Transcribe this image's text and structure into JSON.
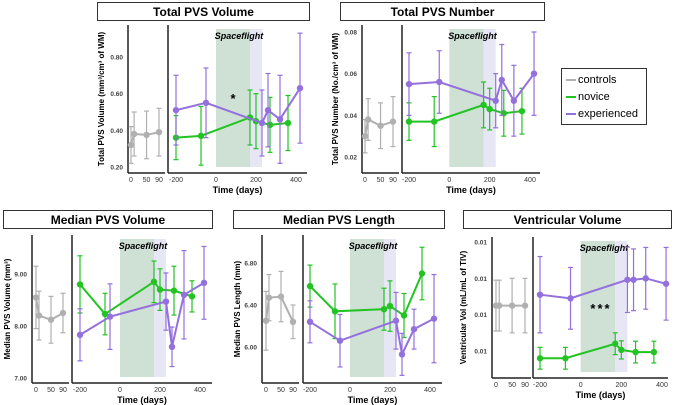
{
  "colors": {
    "controls": "#b0b0b0",
    "novice": "#22c322",
    "experienced": "#9370db",
    "spaceflight_band": "#cfe0d5",
    "post_band": "#e6e6f5"
  },
  "legend": [
    {
      "key": "controls",
      "label": "controls"
    },
    {
      "key": "novice",
      "label": "novice"
    },
    {
      "key": "experienced",
      "label": "experienced"
    }
  ],
  "chart_data": [
    {
      "type": "line",
      "title": "Total PVS Volume",
      "ylabel": "Total PVS Volume (mm³/cm³ of WM)",
      "xlabel": "Time (days)",
      "band_label": "Spaceflight",
      "bands": [
        [
          0,
          170
        ],
        [
          170,
          230
        ]
      ],
      "yticks": [
        0.2,
        0.4,
        0.6,
        0.8
      ],
      "ytick_labels": [
        "0.20",
        "0.40",
        "0.60",
        "0.80"
      ],
      "ctrl_xticks": [
        0,
        50,
        90
      ],
      "xticks": [
        -200,
        0,
        200,
        400
      ],
      "annotation": {
        "text": "*",
        "x": 90,
        "y": 0.57
      },
      "series": [
        {
          "name": "controls",
          "x": [
            0,
            10,
            50,
            90
          ],
          "y": [
            0.32,
            0.38,
            0.375,
            0.39
          ],
          "err": [
            0.1,
            0.12,
            0.13,
            0.13
          ]
        },
        {
          "name": "novice",
          "x": [
            -200,
            -75,
            170,
            200,
            270,
            360
          ],
          "y": [
            0.36,
            0.37,
            0.47,
            0.45,
            0.43,
            0.44
          ],
          "err": [
            0.12,
            0.16,
            0.15,
            0.15,
            0.15,
            0.15
          ]
        },
        {
          "name": "experienced",
          "x": [
            -200,
            -50,
            230,
            260,
            320,
            420
          ],
          "y": [
            0.51,
            0.55,
            0.44,
            0.51,
            0.46,
            0.63
          ],
          "err": [
            0.19,
            0.19,
            0.18,
            0.2,
            0.24,
            0.3
          ]
        }
      ]
    },
    {
      "type": "line",
      "title": "Total PVS Number",
      "ylabel": "Total PVS Number (No./cm³ of WM)",
      "xlabel": "Time (days)",
      "band_label": "Spaceflight",
      "bands": [
        [
          0,
          170
        ],
        [
          170,
          230
        ]
      ],
      "yticks": [
        0.02,
        0.04,
        0.06,
        0.08
      ],
      "ytick_labels": [
        "0.02",
        "0.04",
        "0.06",
        "0.08"
      ],
      "ctrl_xticks": [
        0,
        50,
        90
      ],
      "xticks": [
        -200,
        0,
        200,
        400
      ],
      "series": [
        {
          "name": "controls",
          "x": [
            0,
            10,
            50,
            90
          ],
          "y": [
            0.03,
            0.038,
            0.035,
            0.037
          ],
          "err": [
            0.008,
            0.01,
            0.011,
            0.012
          ]
        },
        {
          "name": "novice",
          "x": [
            -200,
            -75,
            170,
            200,
            270,
            360
          ],
          "y": [
            0.037,
            0.037,
            0.045,
            0.043,
            0.041,
            0.042
          ],
          "err": [
            0.009,
            0.012,
            0.011,
            0.01,
            0.011,
            0.011
          ]
        },
        {
          "name": "experienced",
          "x": [
            -200,
            -50,
            230,
            260,
            320,
            420
          ],
          "y": [
            0.055,
            0.056,
            0.047,
            0.057,
            0.047,
            0.06
          ],
          "err": [
            0.015,
            0.015,
            0.013,
            0.017,
            0.017,
            0.02
          ]
        }
      ]
    },
    {
      "type": "line",
      "title": "Median PVS Volume",
      "ylabel": "Median PVS Volume (mm³)",
      "xlabel": "Time (days)",
      "band_label": "Spaceflight",
      "bands": [
        [
          0,
          170
        ],
        [
          170,
          230
        ]
      ],
      "yticks": [
        7,
        8,
        9
      ],
      "ytick_labels": [
        "7.00",
        "8.00",
        "9.00"
      ],
      "ctrl_xticks": [
        0,
        50,
        90
      ],
      "xticks": [
        -200,
        0,
        200,
        400
      ],
      "series": [
        {
          "name": "controls",
          "x": [
            0,
            10,
            50,
            90
          ],
          "y": [
            8.55,
            8.2,
            8.12,
            8.25
          ],
          "err": [
            0.6,
            0.47,
            0.45,
            0.38
          ]
        },
        {
          "name": "novice",
          "x": [
            -200,
            -75,
            170,
            200,
            270,
            360
          ],
          "y": [
            8.8,
            8.23,
            8.85,
            8.7,
            8.68,
            8.57
          ],
          "err": [
            0.55,
            0.4,
            0.4,
            0.4,
            0.47,
            0.3
          ]
        },
        {
          "name": "experienced",
          "x": [
            -200,
            -50,
            230,
            260,
            320,
            420
          ],
          "y": [
            7.83,
            8.18,
            8.47,
            7.6,
            8.6,
            8.83
          ],
          "err": [
            0.5,
            0.63,
            0.55,
            0.38,
            0.85,
            0.7
          ]
        }
      ]
    },
    {
      "type": "line",
      "title": "Median PVS Length",
      "ylabel": "Median PVS Length (mm)",
      "xlabel": "Time (days)",
      "band_label": "Spaceflight",
      "bands": [
        [
          0,
          170
        ],
        [
          170,
          230
        ]
      ],
      "yticks": [
        6.0,
        6.4,
        6.8
      ],
      "ytick_labels": [
        "6.00",
        "6.40",
        "6.80"
      ],
      "ctrl_xticks": [
        0,
        50,
        90
      ],
      "xticks": [
        -200,
        0,
        200,
        400
      ],
      "series": [
        {
          "name": "controls",
          "x": [
            0,
            10,
            50,
            90
          ],
          "y": [
            6.25,
            6.47,
            6.48,
            6.24
          ],
          "err": [
            0.28,
            0.22,
            0.24,
            0.16
          ]
        },
        {
          "name": "novice",
          "x": [
            -200,
            -75,
            170,
            200,
            270,
            360
          ],
          "y": [
            6.58,
            6.34,
            6.36,
            6.39,
            6.3,
            6.7
          ],
          "err": [
            0.2,
            0.26,
            0.2,
            0.24,
            0.21,
            0.25
          ]
        },
        {
          "name": "experienced",
          "x": [
            -200,
            -50,
            230,
            260,
            320,
            420
          ],
          "y": [
            6.24,
            6.06,
            6.25,
            5.93,
            6.17,
            6.27
          ],
          "err": [
            0.2,
            0.25,
            0.27,
            0.2,
            0.19,
            0.42
          ]
        }
      ]
    },
    {
      "type": "line",
      "title": "Ventricular Volume",
      "ylabel": "Ventricular Vol (mL/mL of TIV)",
      "xlabel": "Time (days)",
      "band_label": "Spaceflight",
      "bands": [
        [
          0,
          170
        ],
        [
          170,
          230
        ]
      ],
      "yticks": [
        1,
        2,
        3,
        4
      ],
      "ytick_labels": [
        "0.01",
        "0.01",
        "0.01",
        "0.01"
      ],
      "ctrl_xticks": [
        0,
        50,
        90
      ],
      "xticks": [
        -200,
        0,
        200,
        400
      ],
      "annotation": {
        "text": "***",
        "x": 100,
        "y": 2.15
      },
      "series": [
        {
          "name": "controls",
          "x": [
            0,
            10,
            50,
            90
          ],
          "y": [
            2.25,
            2.25,
            2.25,
            2.25
          ],
          "err": [
            0.7,
            0.7,
            0.75,
            0.75
          ]
        },
        {
          "name": "novice",
          "x": [
            -200,
            -75,
            170,
            200,
            270,
            360
          ],
          "y": [
            0.8,
            0.8,
            1.2,
            1.03,
            0.97,
            0.97
          ],
          "err": [
            0.3,
            0.3,
            0.3,
            0.25,
            0.3,
            0.3
          ]
        },
        {
          "name": "experienced",
          "x": [
            -200,
            -50,
            230,
            260,
            320,
            420
          ],
          "y": [
            2.55,
            2.45,
            2.96,
            2.96,
            3.0,
            2.85
          ],
          "err": [
            1.05,
            0.85,
            0.9,
            0.85,
            0.85,
            1.0
          ]
        }
      ]
    }
  ]
}
